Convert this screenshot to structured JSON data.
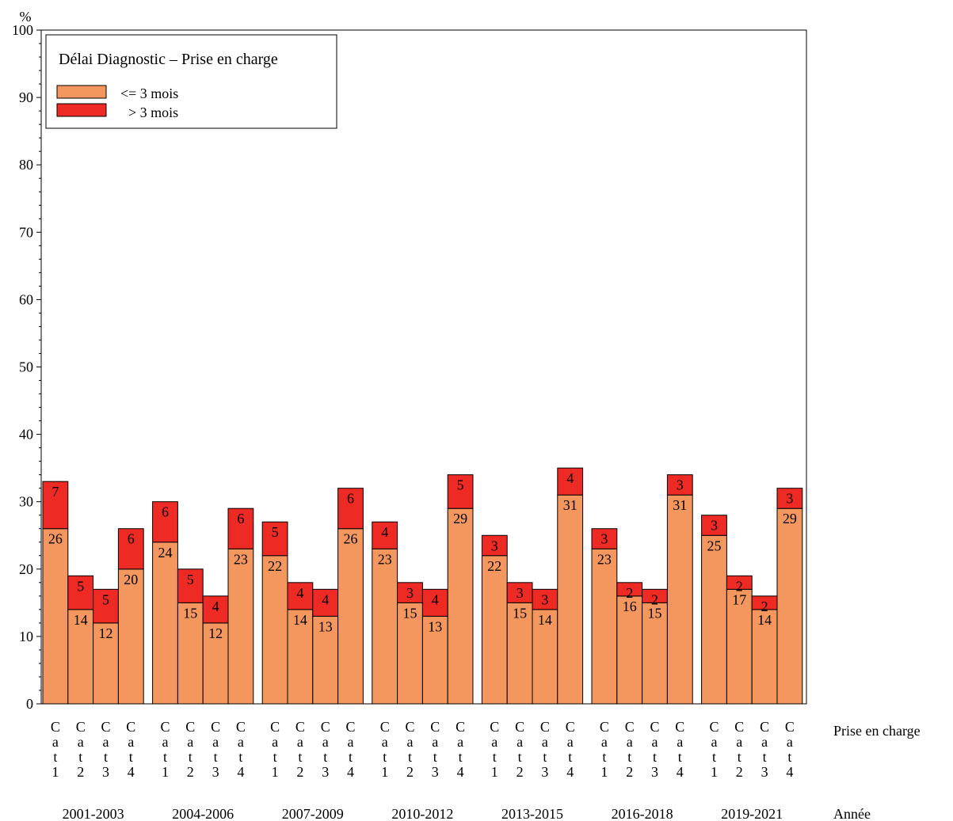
{
  "chart_data": {
    "type": "bar",
    "stacked": true,
    "ylabel": "%",
    "ylim": [
      0,
      100
    ],
    "yticks": [
      0,
      10,
      20,
      30,
      40,
      50,
      60,
      70,
      80,
      90,
      100
    ],
    "grid": false,
    "legend": {
      "title": "Délai Diagnostic – Prise en charge",
      "position": "top-left",
      "entries": [
        {
          "label": "<= 3 mois",
          "color": "#F4975F"
        },
        {
          "label": "> 3 mois",
          "color": "#EE2A24"
        }
      ]
    },
    "inner_axis_title": "Prise en charge",
    "outer_axis_title": "Année",
    "groups": [
      "2001-2003",
      "2004-2006",
      "2007-2009",
      "2010-2012",
      "2013-2015",
      "2016-2018",
      "2019-2021"
    ],
    "categories": [
      "Cat1",
      "Cat2",
      "Cat3",
      "Cat4"
    ],
    "series": [
      {
        "name": "<= 3 mois",
        "color": "#F4975F",
        "values": [
          [
            26,
            14,
            12,
            20
          ],
          [
            24,
            15,
            12,
            23
          ],
          [
            22,
            14,
            13,
            26
          ],
          [
            23,
            15,
            13,
            29
          ],
          [
            22,
            15,
            14,
            31
          ],
          [
            23,
            16,
            15,
            31
          ],
          [
            25,
            17,
            14,
            29
          ]
        ]
      },
      {
        "name": "> 3 mois",
        "color": "#EE2A24",
        "values": [
          [
            7,
            5,
            5,
            6
          ],
          [
            6,
            5,
            4,
            6
          ],
          [
            5,
            4,
            4,
            6
          ],
          [
            4,
            3,
            4,
            5
          ],
          [
            3,
            3,
            3,
            4
          ],
          [
            3,
            2,
            2,
            3
          ],
          [
            3,
            2,
            2,
            3
          ]
        ]
      }
    ]
  }
}
